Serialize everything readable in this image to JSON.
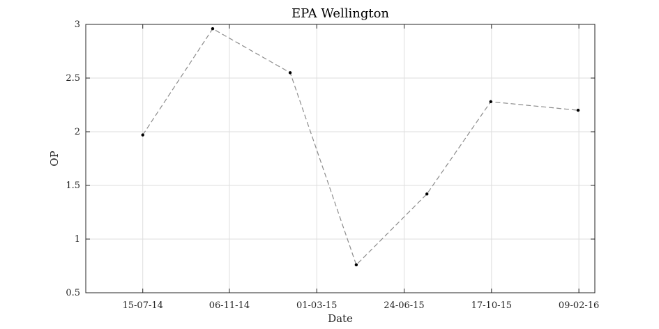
{
  "chart_data": {
    "type": "line",
    "title": "EPA Wellington",
    "xlabel": "Date",
    "ylabel": "OP",
    "ylim": [
      0.5,
      3
    ],
    "xlim": [
      "2014-05-01",
      "2016-03-01"
    ],
    "grid": true,
    "yticks": [
      0.5,
      1,
      1.5,
      2,
      2.5,
      3
    ],
    "ytick_labels": [
      "0.5",
      "1",
      "1.5",
      "2",
      "2.5",
      "3"
    ],
    "xticks": [
      "2014-07-15",
      "2014-11-06",
      "2015-03-01",
      "2015-06-24",
      "2015-10-17",
      "2016-02-09"
    ],
    "xtick_labels": [
      "15-07-14",
      "06-11-14",
      "01-03-15",
      "24-06-15",
      "17-10-15",
      "09-02-16"
    ],
    "series": [
      {
        "line_style": "dashed",
        "line_color": "#8c8c8c",
        "marker_color": "#000000",
        "x": [
          "2014-07-15",
          "2014-10-15",
          "2015-01-25",
          "2015-04-22",
          "2015-07-24",
          "2015-10-16",
          "2016-02-08"
        ],
        "y": [
          1.97,
          2.96,
          2.55,
          0.76,
          1.42,
          2.28,
          2.2
        ]
      }
    ]
  },
  "colors": {
    "grid": "#dedede",
    "axes": "#262626"
  }
}
